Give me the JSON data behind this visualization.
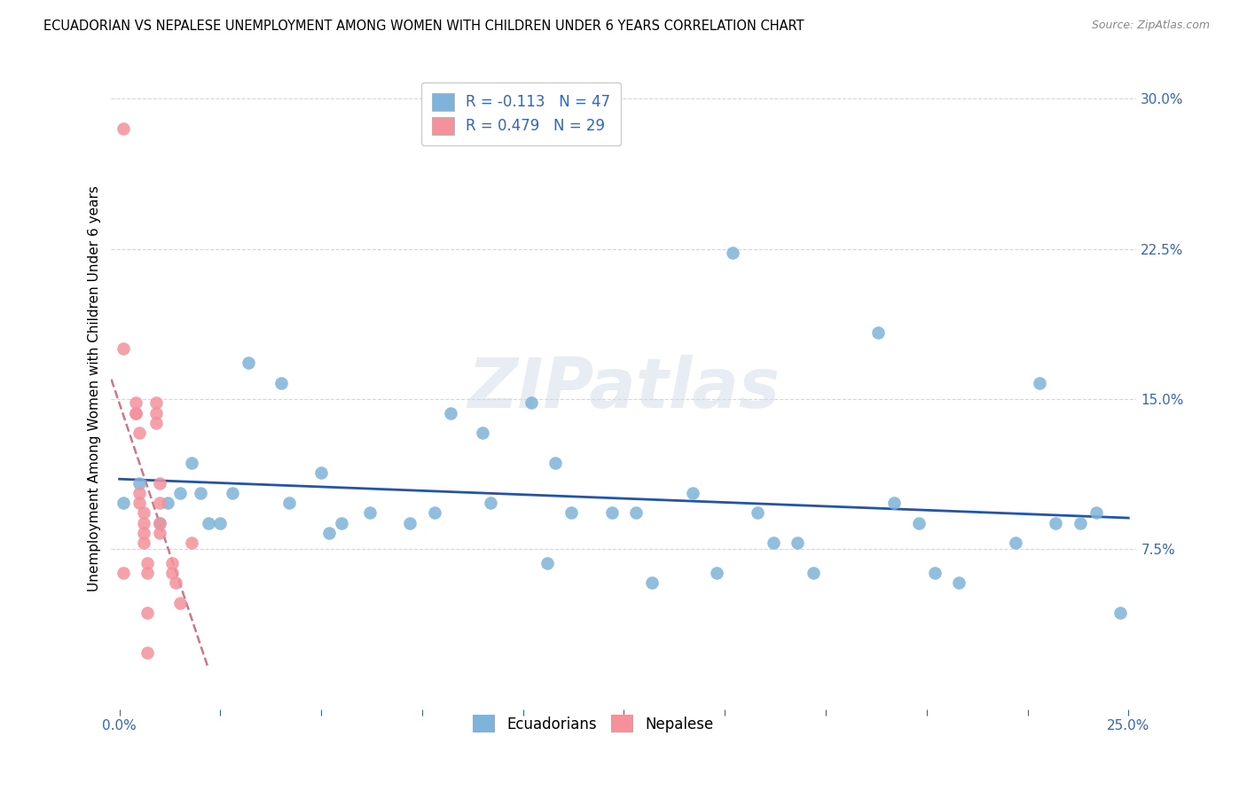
{
  "title": "ECUADORIAN VS NEPALESE UNEMPLOYMENT AMONG WOMEN WITH CHILDREN UNDER 6 YEARS CORRELATION CHART",
  "source": "Source: ZipAtlas.com",
  "ylabel": "Unemployment Among Women with Children Under 6 years",
  "watermark": "ZIPatlas",
  "blue_color": "#7fb3d9",
  "pink_color": "#f4919b",
  "trendline_blue": "#2255aa",
  "trendline_pink": "#cc7788",
  "xlim": [
    -0.002,
    0.252
  ],
  "ylim": [
    -0.005,
    0.315
  ],
  "y_ticks": [
    0.075,
    0.15,
    0.225,
    0.3
  ],
  "y_tick_labels": [
    "7.5%",
    "15.0%",
    "22.5%",
    "30.0%"
  ],
  "x_ticks": [
    0.0,
    0.025,
    0.05,
    0.075,
    0.1,
    0.125,
    0.15,
    0.175,
    0.2,
    0.225,
    0.25
  ],
  "x_tick_labels_show": {
    "0.0": "0.0%",
    "0.25": "25.0%"
  },
  "legend_label_blue": "R = -0.113   N = 47",
  "legend_label_pink": "R = 0.479   N = 29",
  "bottom_legend_blue": "Ecuadorians",
  "bottom_legend_pink": "Nepalese",
  "ecuadorians_x": [
    0.001,
    0.005,
    0.01,
    0.012,
    0.015,
    0.018,
    0.02,
    0.022,
    0.025,
    0.028,
    0.032,
    0.04,
    0.042,
    0.05,
    0.052,
    0.055,
    0.062,
    0.072,
    0.078,
    0.082,
    0.09,
    0.092,
    0.102,
    0.106,
    0.108,
    0.112,
    0.122,
    0.128,
    0.132,
    0.142,
    0.148,
    0.152,
    0.158,
    0.162,
    0.168,
    0.172,
    0.188,
    0.192,
    0.198,
    0.202,
    0.208,
    0.222,
    0.228,
    0.232,
    0.238,
    0.242,
    0.248
  ],
  "ecuadorians_y": [
    0.098,
    0.108,
    0.088,
    0.098,
    0.103,
    0.118,
    0.103,
    0.088,
    0.088,
    0.103,
    0.168,
    0.158,
    0.098,
    0.113,
    0.083,
    0.088,
    0.093,
    0.088,
    0.093,
    0.143,
    0.133,
    0.098,
    0.148,
    0.068,
    0.118,
    0.093,
    0.093,
    0.093,
    0.058,
    0.103,
    0.063,
    0.223,
    0.093,
    0.078,
    0.078,
    0.063,
    0.183,
    0.098,
    0.088,
    0.063,
    0.058,
    0.078,
    0.158,
    0.088,
    0.088,
    0.093,
    0.043
  ],
  "nepalese_x": [
    0.001,
    0.001,
    0.001,
    0.004,
    0.004,
    0.004,
    0.005,
    0.005,
    0.005,
    0.006,
    0.006,
    0.006,
    0.006,
    0.007,
    0.007,
    0.007,
    0.007,
    0.009,
    0.009,
    0.009,
    0.01,
    0.01,
    0.01,
    0.01,
    0.013,
    0.013,
    0.014,
    0.015,
    0.018
  ],
  "nepalese_y": [
    0.285,
    0.175,
    0.063,
    0.148,
    0.143,
    0.143,
    0.133,
    0.103,
    0.098,
    0.093,
    0.088,
    0.083,
    0.078,
    0.068,
    0.063,
    0.043,
    0.023,
    0.148,
    0.143,
    0.138,
    0.108,
    0.098,
    0.088,
    0.083,
    0.068,
    0.063,
    0.058,
    0.048,
    0.078
  ]
}
